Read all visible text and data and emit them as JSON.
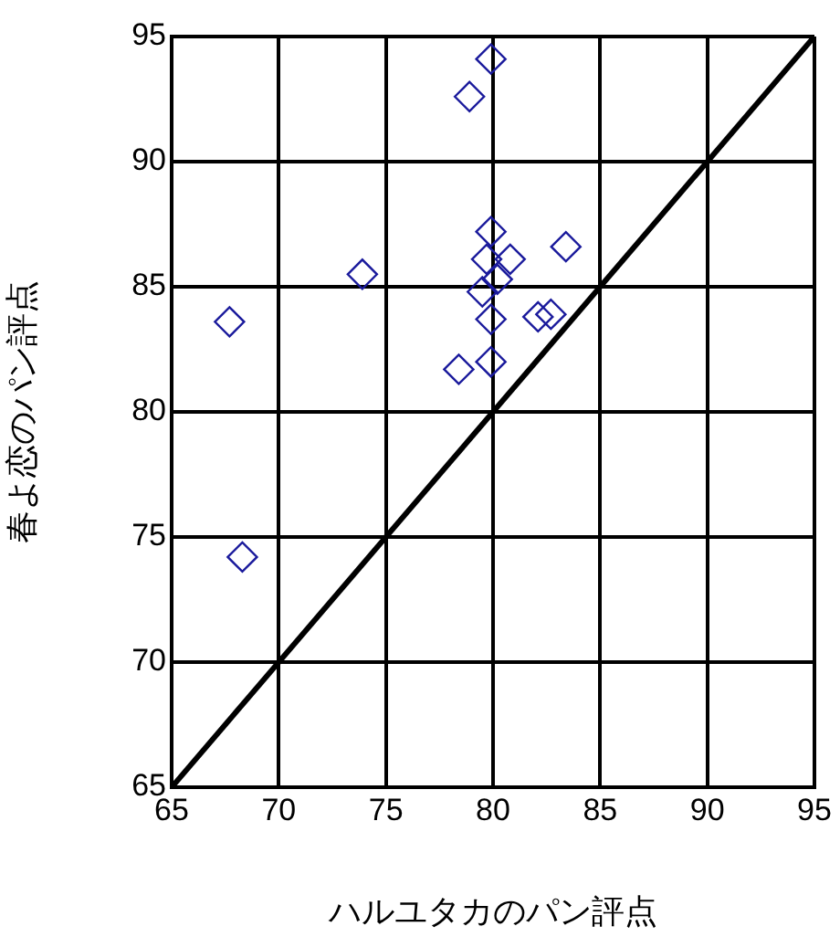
{
  "chart_data": {
    "type": "scatter",
    "xlabel": "ハルユタカのパン評点",
    "ylabel": "春よ恋のパン評点",
    "xlim": [
      65,
      95
    ],
    "ylim": [
      65,
      95
    ],
    "xticks": [
      65,
      70,
      75,
      80,
      85,
      90,
      95
    ],
    "yticks": [
      65,
      70,
      75,
      80,
      85,
      90,
      95
    ],
    "grid": true,
    "legend": false,
    "marker": "diamond",
    "series": [
      {
        "color": "#1a1a9c",
        "x": [
          79.9,
          78.9,
          79.9,
          83.4,
          80.8,
          79.7,
          73.9,
          80.2,
          79.5,
          67.7,
          79.9,
          82.1,
          82.7,
          79.9,
          78.4,
          68.3
        ],
        "values": [
          94.1,
          92.6,
          87.2,
          86.6,
          86.1,
          86.1,
          85.5,
          85.3,
          84.8,
          83.6,
          83.7,
          83.8,
          83.9,
          82.0,
          81.7,
          74.2
        ]
      },
      {
        "type": "line",
        "color": "#000000",
        "marker": "none",
        "line_style": "solid",
        "x": [
          65,
          95
        ],
        "values": [
          65,
          95
        ]
      }
    ]
  }
}
